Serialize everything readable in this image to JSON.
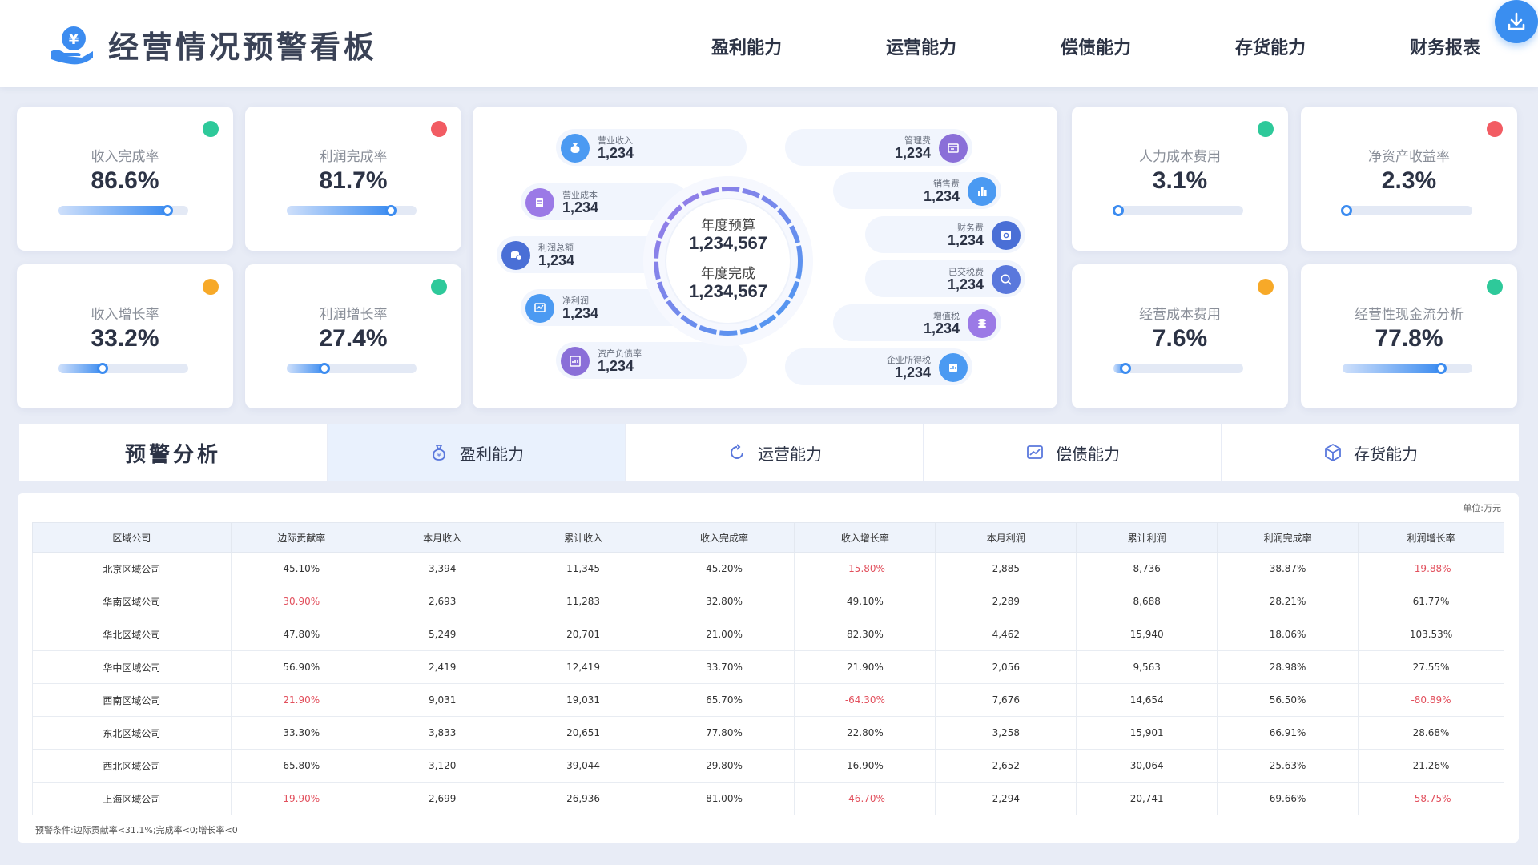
{
  "header": {
    "title": "经营情况预警看板",
    "nav": [
      "盈利能力",
      "运营能力",
      "偿债能力",
      "存货能力",
      "财务报表"
    ]
  },
  "colors": {
    "green": "#2ec99a",
    "red": "#f25c63",
    "orange": "#f7a928",
    "accent": "#3c8cf0"
  },
  "kpis": [
    {
      "label": "收入完成率",
      "value": "86.6%",
      "status": "green",
      "progress": 0.84
    },
    {
      "label": "利润完成率",
      "value": "81.7%",
      "status": "red",
      "progress": 0.8
    },
    {
      "label": "收入增长率",
      "value": "33.2%",
      "status": "orange",
      "progress": 0.34
    },
    {
      "label": "利润增长率",
      "value": "27.4%",
      "status": "green",
      "progress": 0.29
    },
    {
      "label": "人力成本费用",
      "value": "3.1%",
      "status": "green",
      "progress": 0.04
    },
    {
      "label": "净资产收益率",
      "value": "2.3%",
      "status": "red",
      "progress": 0.03
    },
    {
      "label": "经营成本费用",
      "value": "7.6%",
      "status": "orange",
      "progress": 0.09
    },
    {
      "label": "经营性现金流分析",
      "value": "77.8%",
      "status": "green",
      "progress": 0.76
    }
  ],
  "center": {
    "budget_label": "年度预算",
    "budget_value": "1,234,567",
    "done_label": "年度完成",
    "done_value": "1,234,567",
    "left_items": [
      {
        "label": "营业收入",
        "value": "1,234",
        "icon": "bag-icon",
        "color": "#4b9af2"
      },
      {
        "label": "营业成本",
        "value": "1,234",
        "icon": "document-icon",
        "color": "#9b7ae6"
      },
      {
        "label": "利润总额",
        "value": "1,234",
        "icon": "coins-icon",
        "color": "#4a6fd6"
      },
      {
        "label": "净利润",
        "value": "1,234",
        "icon": "chart-icon",
        "color": "#4b9af2"
      },
      {
        "label": "资产负债率",
        "value": "1,234",
        "icon": "report-icon",
        "color": "#8a6fd8"
      }
    ],
    "right_items": [
      {
        "label": "管理费",
        "value": "1,234",
        "icon": "folder-icon",
        "color": "#8a6fd8"
      },
      {
        "label": "销售费",
        "value": "1,234",
        "icon": "bar-chart-icon",
        "color": "#4b9af2"
      },
      {
        "label": "财务费",
        "value": "1,234",
        "icon": "safe-icon",
        "color": "#4a6fd6"
      },
      {
        "label": "已交税费",
        "value": "1,234",
        "icon": "search-money-icon",
        "color": "#5a78dc"
      },
      {
        "label": "增值税",
        "value": "1,234",
        "icon": "stack-icon",
        "color": "#9b7ae6"
      },
      {
        "label": "企业所得税",
        "value": "1,234",
        "icon": "calc-icon",
        "color": "#4b9af2"
      }
    ]
  },
  "tabs": {
    "title": "预警分析",
    "items": [
      {
        "label": "盈利能力",
        "icon": "money-bag-icon"
      },
      {
        "label": "运营能力",
        "icon": "refresh-icon"
      },
      {
        "label": "偿债能力",
        "icon": "trend-chart-icon"
      },
      {
        "label": "存货能力",
        "icon": "box-icon"
      }
    ]
  },
  "table": {
    "unit": "单位:万元",
    "headers": [
      "区域公司",
      "边际贡献率",
      "本月收入",
      "累计收入",
      "收入完成率",
      "收入增长率",
      "本月利润",
      "累计利润",
      "利润完成率",
      "利润增长率"
    ],
    "rows": [
      [
        "北京区域公司",
        "45.10%",
        "3,394",
        "11,345",
        "45.20%",
        "-15.80%",
        "2,885",
        "8,736",
        "38.87%",
        "-19.88%"
      ],
      [
        "华南区域公司",
        "30.90%",
        "2,693",
        "11,283",
        "32.80%",
        "49.10%",
        "2,289",
        "8,688",
        "28.21%",
        "61.77%"
      ],
      [
        "华北区域公司",
        "47.80%",
        "5,249",
        "20,701",
        "21.00%",
        "82.30%",
        "4,462",
        "15,940",
        "18.06%",
        "103.53%"
      ],
      [
        "华中区域公司",
        "56.90%",
        "2,419",
        "12,419",
        "33.70%",
        "21.90%",
        "2,056",
        "9,563",
        "28.98%",
        "27.55%"
      ],
      [
        "西南区域公司",
        "21.90%",
        "9,031",
        "19,031",
        "65.70%",
        "-64.30%",
        "7,676",
        "14,654",
        "56.50%",
        "-80.89%"
      ],
      [
        "东北区域公司",
        "33.30%",
        "3,833",
        "20,651",
        "77.80%",
        "22.80%",
        "3,258",
        "15,901",
        "66.91%",
        "28.68%"
      ],
      [
        "西北区域公司",
        "65.80%",
        "3,120",
        "39,044",
        "29.80%",
        "16.90%",
        "2,652",
        "30,064",
        "25.63%",
        "21.26%"
      ],
      [
        "上海区域公司",
        "19.90%",
        "2,699",
        "26,936",
        "81.00%",
        "-46.70%",
        "2,294",
        "20,741",
        "69.66%",
        "-58.75%"
      ]
    ],
    "note": "预警条件:边际贡献率<31.1%;完成率<0;增长率<0"
  }
}
